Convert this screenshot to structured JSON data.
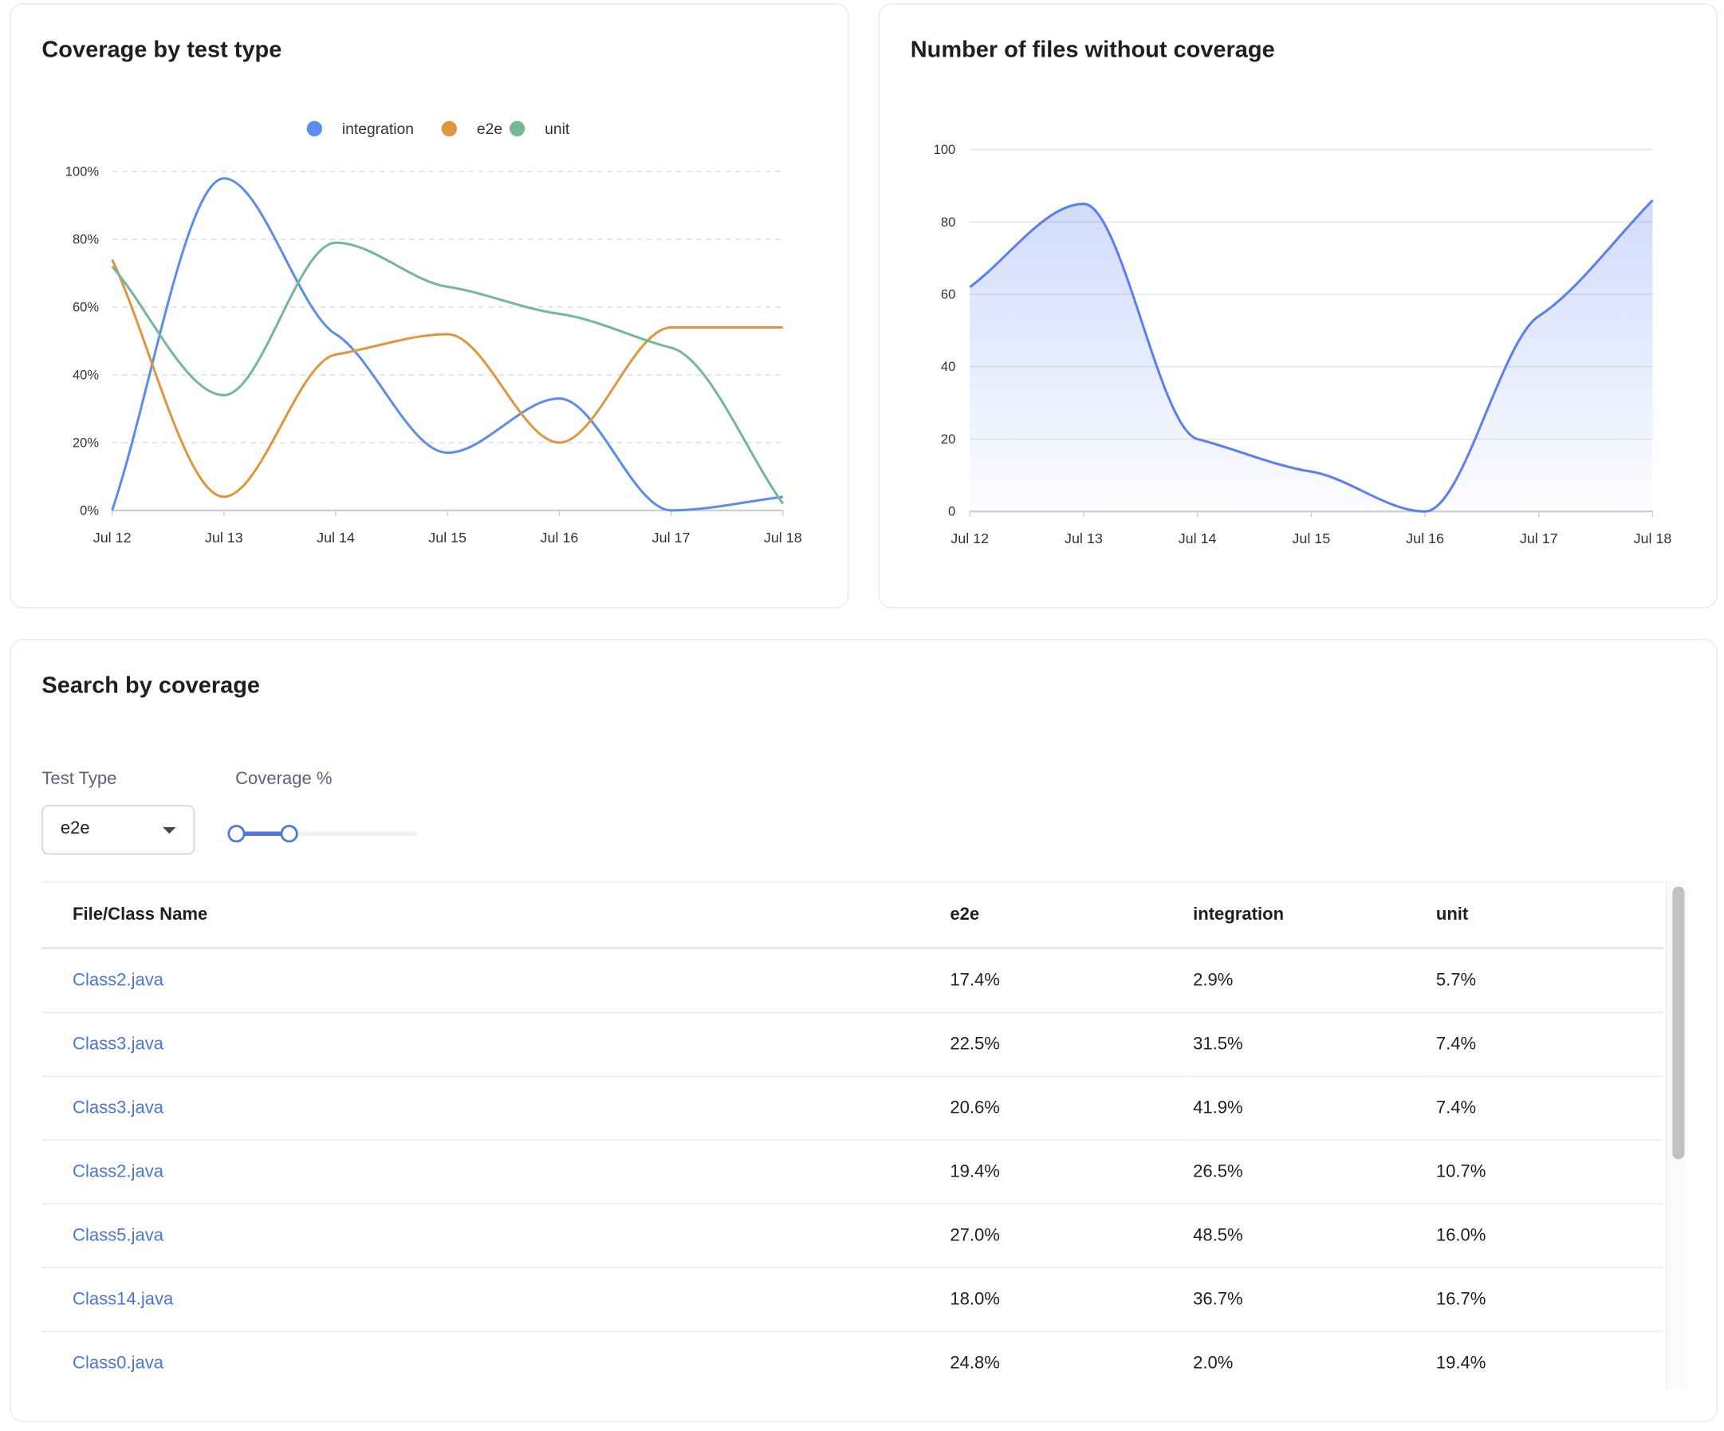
{
  "coverage_card": {
    "title": "Coverage by test type"
  },
  "files_card": {
    "title": "Number of files without coverage"
  },
  "chart_data": [
    {
      "type": "line",
      "title": "Coverage by test type",
      "categories": [
        "Jul 12",
        "Jul 13",
        "Jul 14",
        "Jul 15",
        "Jul 16",
        "Jul 17",
        "Jul 18"
      ],
      "series": [
        {
          "name": "integration",
          "color": "#5b8def",
          "values": [
            0,
            98,
            52,
            17,
            33,
            0,
            4
          ]
        },
        {
          "name": "e2e",
          "color": "#e0963d",
          "values": [
            74,
            4,
            46,
            52,
            20,
            54,
            54
          ]
        },
        {
          "name": "unit",
          "color": "#72b899",
          "values": [
            72,
            34,
            79,
            66,
            58,
            48,
            2
          ]
        }
      ],
      "yticks": [
        "0%",
        "20%",
        "40%",
        "60%",
        "80%",
        "100%"
      ],
      "ylim": [
        0,
        100
      ],
      "grid": true,
      "legend": "top-center"
    },
    {
      "type": "area",
      "title": "Number of files without coverage",
      "categories": [
        "Jul 12",
        "Jul 13",
        "Jul 14",
        "Jul 15",
        "Jul 16",
        "Jul 17",
        "Jul 18"
      ],
      "series": [
        {
          "name": "files",
          "color": "#5b7ff0",
          "values": [
            62,
            85,
            20,
            11,
            0,
            54,
            86
          ]
        }
      ],
      "yticks": [
        "0",
        "20",
        "40",
        "60",
        "80",
        "100"
      ],
      "ylim": [
        0,
        100
      ],
      "grid": true
    }
  ],
  "search": {
    "title": "Search by coverage",
    "test_type_label": "Test Type",
    "test_type_value": "e2e",
    "coverage_label": "Coverage %",
    "slider_range": [
      0,
      30
    ],
    "columns": [
      "File/Class Name",
      "e2e",
      "integration",
      "unit"
    ],
    "rows": [
      [
        "Class2.java",
        "17.4%",
        "2.9%",
        "5.7%"
      ],
      [
        "Class3.java",
        "22.5%",
        "31.5%",
        "7.4%"
      ],
      [
        "Class3.java",
        "20.6%",
        "41.9%",
        "7.4%"
      ],
      [
        "Class2.java",
        "19.4%",
        "26.5%",
        "10.7%"
      ],
      [
        "Class5.java",
        "27.0%",
        "48.5%",
        "16.0%"
      ],
      [
        "Class14.java",
        "18.0%",
        "36.7%",
        "16.7%"
      ],
      [
        "Class0.java",
        "24.8%",
        "2.0%",
        "19.4%"
      ]
    ]
  }
}
